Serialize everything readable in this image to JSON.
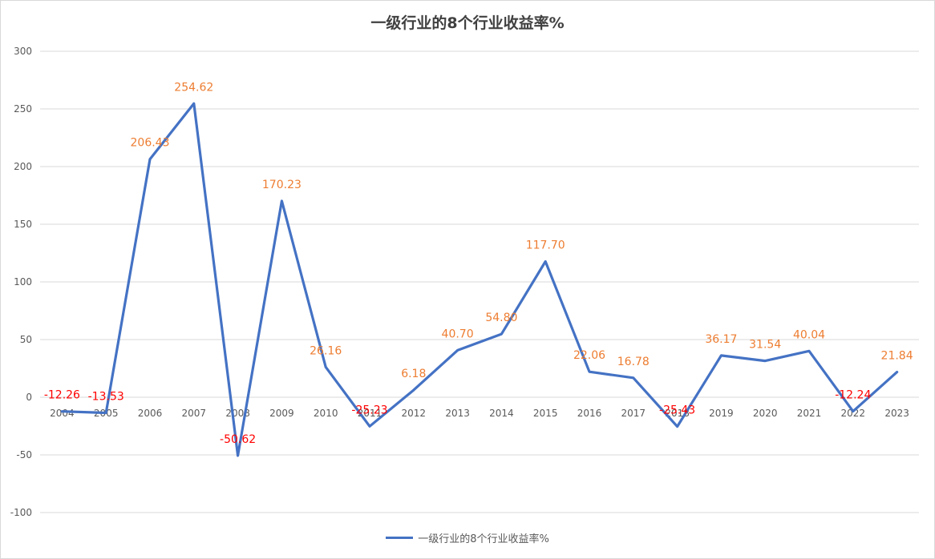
{
  "chart_data": {
    "type": "line",
    "title": "一级行业的8个行业收益率%",
    "xlabel": "",
    "ylabel": "",
    "ylim": [
      -100,
      300
    ],
    "yticks": [
      -100,
      -50,
      0,
      50,
      100,
      150,
      200,
      250,
      300
    ],
    "grid": true,
    "legend_position": "bottom",
    "categories": [
      "2004",
      "2005",
      "2006",
      "2007",
      "2008",
      "2009",
      "2010",
      "2011",
      "2012",
      "2013",
      "2014",
      "2015",
      "2016",
      "2017",
      "2018",
      "2019",
      "2020",
      "2021",
      "2022",
      "2023"
    ],
    "series": [
      {
        "name": "一级行业的8个行业收益率%",
        "color": "#4472c4",
        "values": [
          -12.26,
          -13.53,
          206.43,
          254.62,
          -50.62,
          170.23,
          26.16,
          -25.23,
          6.18,
          40.7,
          54.8,
          117.7,
          22.06,
          16.78,
          -25.43,
          36.17,
          31.54,
          40.04,
          -12.24,
          21.84
        ],
        "data_labels": [
          "-12.26",
          "-13.53",
          "206.43",
          "254.62",
          "-50.62",
          "170.23",
          "26.16",
          "-25.23",
          "6.18",
          "40.70",
          "54.80",
          "117.70",
          "22.06",
          "16.78",
          "-25.43",
          "36.17",
          "31.54",
          "40.04",
          "-12.24",
          "21.84"
        ]
      }
    ],
    "label_colors": {
      "positive": "#ed7d31",
      "negative": "#ff0000"
    },
    "gridline_color": "#d9d9d9",
    "axis_label_color": "#595959"
  }
}
